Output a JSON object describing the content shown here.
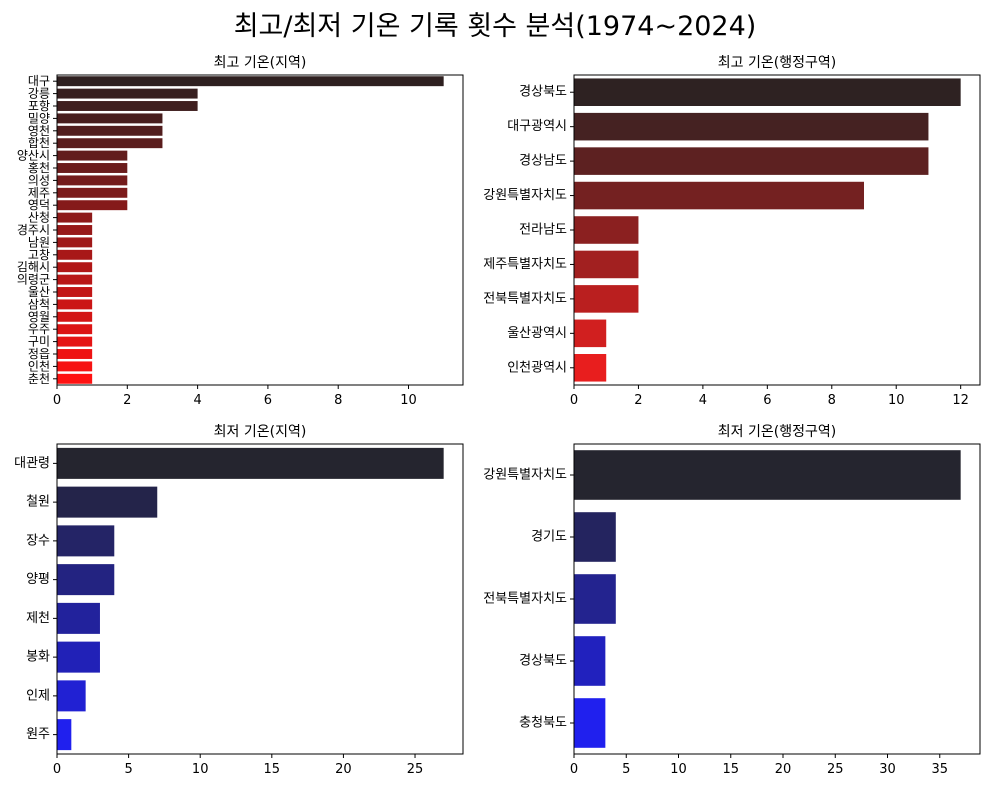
{
  "title": "최고/최저 기온 기록 횟수 분석(1974~2024)",
  "chart_data": [
    {
      "type": "bar",
      "orientation": "horizontal",
      "title": "최고 기온(지역)",
      "xlabel": "",
      "ylabel": "",
      "xlim": [
        0,
        11.55
      ],
      "xticks": [
        0,
        2,
        4,
        6,
        8,
        10
      ],
      "categories": [
        "대구",
        "강릉",
        "포항",
        "밀양",
        "영천",
        "합천",
        "양산시",
        "홍천",
        "의성",
        "제주",
        "영덕",
        "산청",
        "경주시",
        "남원",
        "고창",
        "김해시",
        "의령군",
        "울산",
        "삼척",
        "영월",
        "우주",
        "구미",
        "정읍",
        "인천",
        "춘천"
      ],
      "values": [
        11,
        4,
        4,
        3,
        3,
        3,
        2,
        2,
        2,
        2,
        2,
        1,
        1,
        1,
        1,
        1,
        1,
        1,
        1,
        1,
        1,
        1,
        1,
        1,
        1
      ],
      "palette": {
        "start": "#2e2020",
        "end": "#ff1212"
      },
      "grid": false,
      "legend": "none"
    },
    {
      "type": "bar",
      "orientation": "horizontal",
      "title": "최고 기온(행정구역)",
      "xlabel": "",
      "ylabel": "",
      "xlim": [
        0,
        12.6
      ],
      "xticks": [
        0,
        2,
        4,
        6,
        8,
        10,
        12
      ],
      "categories": [
        "경상북도",
        "대구광역시",
        "경상남도",
        "강원특별자치도",
        "전라남도",
        "제주특별자치도",
        "전북특별자치도",
        "울산광역시",
        "인천광역시"
      ],
      "values": [
        12,
        11,
        11,
        9,
        2,
        2,
        2,
        1,
        1
      ],
      "palette": {
        "start": "#2e2222",
        "end": "#e81e1e"
      },
      "grid": false,
      "legend": "none"
    },
    {
      "type": "bar",
      "orientation": "horizontal",
      "title": "최저 기온(지역)",
      "xlabel": "",
      "ylabel": "",
      "xlim": [
        0,
        28.35
      ],
      "xticks": [
        0,
        5,
        10,
        15,
        20,
        25
      ],
      "categories": [
        "대관령",
        "철원",
        "장수",
        "양평",
        "제천",
        "봉화",
        "인제",
        "원주"
      ],
      "values": [
        27,
        7,
        4,
        4,
        3,
        3,
        2,
        1
      ],
      "palette": {
        "start": "#25252f",
        "end": "#2020ee"
      },
      "grid": false,
      "legend": "none"
    },
    {
      "type": "bar",
      "orientation": "horizontal",
      "title": "최저 기온(행정구역)",
      "xlabel": "",
      "ylabel": "",
      "xlim": [
        0,
        38.85
      ],
      "xticks": [
        0,
        5,
        10,
        15,
        20,
        25,
        30,
        35
      ],
      "categories": [
        "강원특별자치도",
        "경기도",
        "전북특별자치도",
        "경상북도",
        "충청북도"
      ],
      "values": [
        37,
        4,
        4,
        3,
        3
      ],
      "palette": {
        "start": "#25252f",
        "end": "#2020ee"
      },
      "grid": false,
      "legend": "none"
    }
  ]
}
